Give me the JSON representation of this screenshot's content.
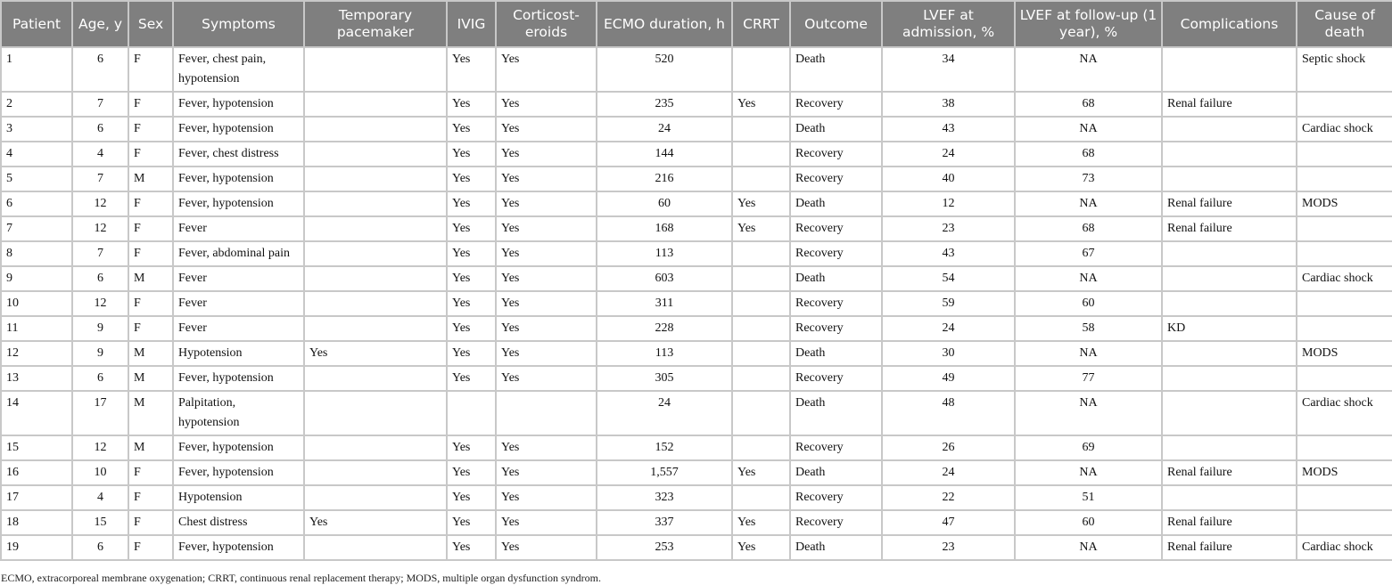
{
  "headers": [
    "Patient",
    "Age, y",
    "Sex",
    "Symptoms",
    "Temporary pacemaker",
    "IVIG",
    "Corticost-eroids",
    "ECMO duration, h",
    "CRRT",
    "Outcome",
    "LVEF at admission, %",
    "LVEF at follow-up (1 year), %",
    "Complications",
    "Cause of death"
  ],
  "rows": [
    [
      "1",
      "6",
      "F",
      "Fever, chest pain, hypotension",
      "",
      "Yes",
      "Yes",
      "520",
      "",
      "Death",
      "34",
      "NA",
      "",
      "Septic shock"
    ],
    [
      "2",
      "7",
      "F",
      "Fever, hypotension",
      "",
      "Yes",
      "Yes",
      "235",
      "Yes",
      "Recovery",
      "38",
      "68",
      "Renal failure",
      ""
    ],
    [
      "3",
      "6",
      "F",
      "Fever, hypotension",
      "",
      "Yes",
      "Yes",
      "24",
      "",
      "Death",
      "43",
      "NA",
      "",
      "Cardiac shock"
    ],
    [
      "4",
      "4",
      "F",
      "Fever, chest distress",
      "",
      "Yes",
      "Yes",
      "144",
      "",
      "Recovery",
      "24",
      "68",
      "",
      ""
    ],
    [
      "5",
      "7",
      "M",
      "Fever, hypotension",
      "",
      "Yes",
      "Yes",
      "216",
      "",
      "Recovery",
      "40",
      "73",
      "",
      ""
    ],
    [
      "6",
      "12",
      "F",
      "Fever, hypotension",
      "",
      "Yes",
      "Yes",
      "60",
      "Yes",
      "Death",
      "12",
      "NA",
      "Renal failure",
      "MODS"
    ],
    [
      "7",
      "12",
      "F",
      "Fever",
      "",
      "Yes",
      "Yes",
      "168",
      "Yes",
      "Recovery",
      "23",
      "68",
      "Renal failure",
      ""
    ],
    [
      "8",
      "7",
      "F",
      "Fever, abdominal pain",
      "",
      "Yes",
      "Yes",
      "113",
      "",
      "Recovery",
      "43",
      "67",
      "",
      ""
    ],
    [
      "9",
      "6",
      "M",
      "Fever",
      "",
      "Yes",
      "Yes",
      "603",
      "",
      "Death",
      "54",
      "NA",
      "",
      "Cardiac shock"
    ],
    [
      "10",
      "12",
      "F",
      "Fever",
      "",
      "Yes",
      "Yes",
      "311",
      "",
      "Recovery",
      "59",
      "60",
      "",
      ""
    ],
    [
      "11",
      "9",
      "F",
      "Fever",
      "",
      "Yes",
      "Yes",
      "228",
      "",
      "Recovery",
      "24",
      "58",
      "KD",
      ""
    ],
    [
      "12",
      "9",
      "M",
      "Hypotension",
      "Yes",
      "Yes",
      "Yes",
      "113",
      "",
      "Death",
      "30",
      "NA",
      "",
      "MODS"
    ],
    [
      "13",
      "6",
      "M",
      "Fever, hypotension",
      "",
      "Yes",
      "Yes",
      "305",
      "",
      "Recovery",
      "49",
      "77",
      "",
      ""
    ],
    [
      "14",
      "17",
      "M",
      "Palpitation, hypotension",
      "",
      "",
      "",
      "24",
      "",
      "Death",
      "48",
      "NA",
      "",
      "Cardiac shock"
    ],
    [
      "15",
      "12",
      "M",
      "Fever, hypotension",
      "",
      "Yes",
      "Yes",
      "152",
      "",
      "Recovery",
      "26",
      "69",
      "",
      ""
    ],
    [
      "16",
      "10",
      "F",
      "Fever, hypotension",
      "",
      "Yes",
      "Yes",
      "1,557",
      "Yes",
      "Death",
      "24",
      "NA",
      "Renal failure",
      "MODS"
    ],
    [
      "17",
      "4",
      "F",
      "Hypotension",
      "",
      "Yes",
      "Yes",
      "323",
      "",
      "Recovery",
      "22",
      "51",
      "",
      ""
    ],
    [
      "18",
      "15",
      "F",
      "Chest distress",
      "Yes",
      "Yes",
      "Yes",
      "337",
      "Yes",
      "Recovery",
      "47",
      "60",
      "Renal failure",
      ""
    ],
    [
      "19",
      "6",
      "F",
      "Fever, hypotension",
      "",
      "Yes",
      "Yes",
      "253",
      "Yes",
      "Death",
      "23",
      "NA",
      "Renal failure",
      "Cardiac shock"
    ]
  ],
  "footnote": "ECMO, extracorporeal membrane oxygenation; CRRT, continuous renal replacement therapy; MODS, multiple organ dysfunction syndrom.",
  "colors": {
    "header_bg": "#7f7f7f",
    "header_text": "#ffffff",
    "grid": "#c8c8c8"
  }
}
